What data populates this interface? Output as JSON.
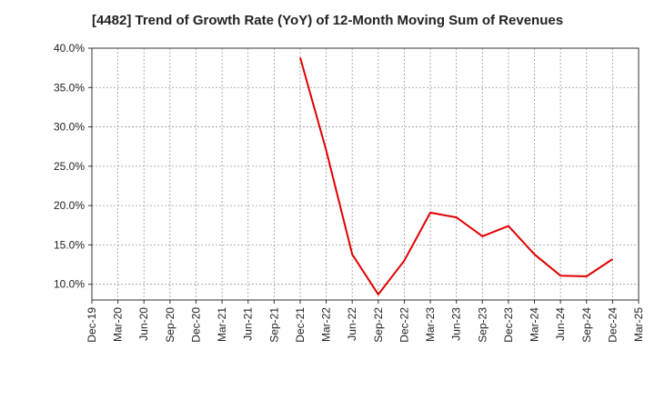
{
  "chart_data": {
    "type": "line",
    "title": "[4482]  Trend of Growth Rate (YoY) of 12-Month Moving Sum of Revenues",
    "xlabel": "",
    "ylabel": "",
    "x_ticks": [
      "Dec-19",
      "Mar-20",
      "Jun-20",
      "Sep-20",
      "Dec-20",
      "Mar-21",
      "Jun-21",
      "Sep-21",
      "Dec-21",
      "Mar-22",
      "Jun-22",
      "Sep-22",
      "Dec-22",
      "Mar-23",
      "Jun-23",
      "Sep-23",
      "Dec-23",
      "Mar-24",
      "Jun-24",
      "Sep-24",
      "Dec-24",
      "Mar-25"
    ],
    "y_ticks": [
      "10.0%",
      "15.0%",
      "20.0%",
      "25.0%",
      "30.0%",
      "35.0%",
      "40.0%"
    ],
    "ylim": [
      8.0,
      40.0
    ],
    "grid": true,
    "series": [
      {
        "color": "#e00000",
        "x": [
          "Dec-21",
          "Mar-22",
          "Jun-22",
          "Sep-22",
          "Dec-22",
          "Mar-23",
          "Jun-23",
          "Sep-23",
          "Dec-23",
          "Mar-24",
          "Jun-24",
          "Sep-24",
          "Dec-24"
        ],
        "values": [
          38.8,
          27.0,
          13.8,
          8.7,
          13.0,
          19.1,
          18.5,
          16.1,
          17.4,
          13.8,
          11.1,
          11.0,
          13.2
        ]
      }
    ]
  }
}
